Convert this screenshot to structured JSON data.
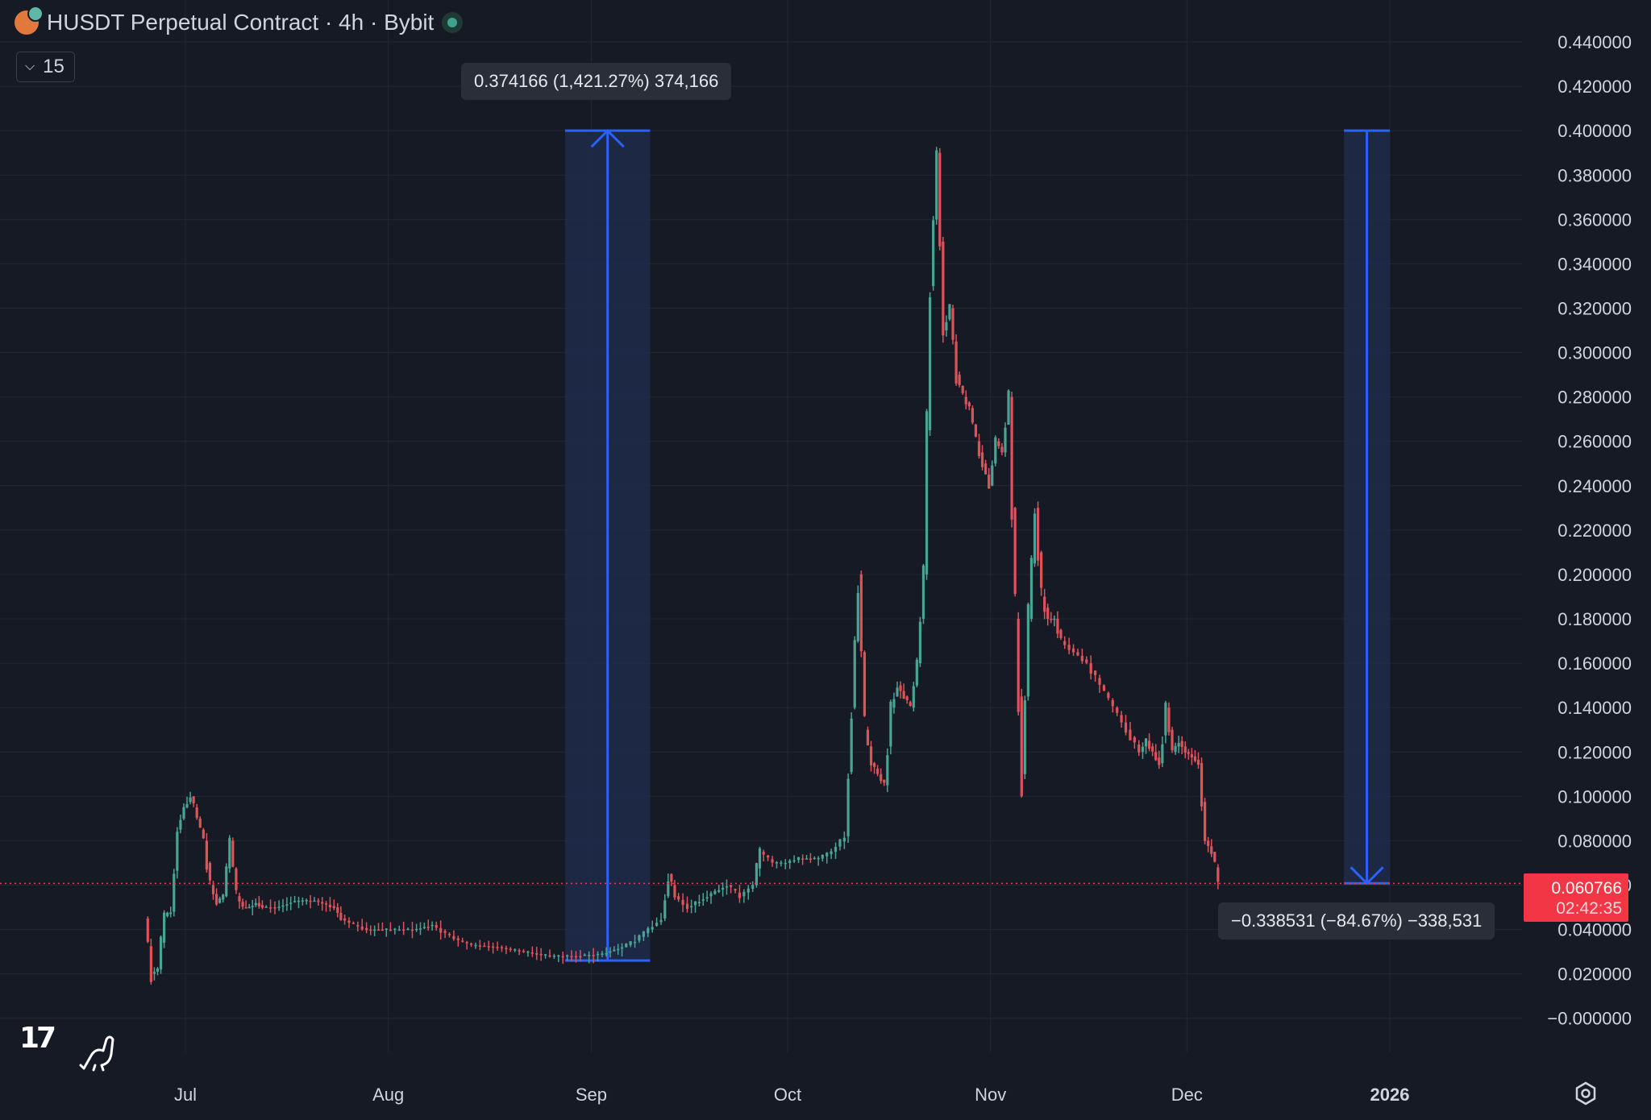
{
  "header": {
    "title": "HUSDT Perpetual Contract · 4h · Bybit",
    "indicator_count": "15"
  },
  "colors": {
    "background": "#161a25",
    "grid": "#232734",
    "up": "#4aa393",
    "down": "#e0525a",
    "measure_line": "#2962ff",
    "measure_fill": "#1e2b4b",
    "price_line": "#f23645",
    "axis_text": "#d1d4dc"
  },
  "measure_up": {
    "label": "0.374166 (1,421.27%) 374,166",
    "from": 0.026,
    "to": 0.4,
    "start_date": "2025-08-28",
    "end_date": "2025-09-10"
  },
  "measure_down": {
    "label": "−0.338531 (−84.67%) −338,531",
    "from": 0.4,
    "to": 0.0608,
    "start_date": "2025-12-25",
    "end_date": "2026-01-01"
  },
  "current_price": {
    "value": "0.060766",
    "countdown": "02:42:35"
  },
  "chart_data": {
    "type": "line",
    "title": "HUSDT Perpetual Contract · 4h · Bybit",
    "xlabel": "",
    "ylabel": "",
    "ylim": [
      -0.003,
      0.448
    ],
    "grid": true,
    "x_tick_labels": [
      "Jul",
      "Aug",
      "Sep",
      "Oct",
      "Nov",
      "Dec",
      "2026"
    ],
    "x_tick_dates": [
      "2025-07-01",
      "2025-08-01",
      "2025-09-01",
      "2025-10-01",
      "2025-11-01",
      "2025-12-01",
      "2026-01-01"
    ],
    "y_tick_labels": [
      "0.440000",
      "0.420000",
      "0.400000",
      "0.380000",
      "0.360000",
      "0.340000",
      "0.320000",
      "0.300000",
      "0.280000",
      "0.260000",
      "0.240000",
      "0.220000",
      "0.200000",
      "0.180000",
      "0.160000",
      "0.140000",
      "0.120000",
      "0.100000",
      "0.080000",
      "0.060000",
      "0.040000",
      "0.020000",
      "−0.000000"
    ],
    "series": [
      {
        "x": [
          "2025-06-25",
          "2025-06-26",
          "2025-06-27",
          "2025-06-28",
          "2025-06-29",
          "2025-06-30",
          "2025-07-01",
          "2025-07-02",
          "2025-07-03",
          "2025-07-04",
          "2025-07-05",
          "2025-07-06",
          "2025-07-07",
          "2025-07-08",
          "2025-07-09",
          "2025-07-10",
          "2025-07-11",
          "2025-07-12",
          "2025-07-13",
          "2025-07-15",
          "2025-07-18",
          "2025-07-21",
          "2025-07-24",
          "2025-07-25",
          "2025-07-27",
          "2025-07-29",
          "2025-08-01",
          "2025-08-05",
          "2025-08-08",
          "2025-08-10",
          "2025-08-12",
          "2025-08-14",
          "2025-08-18",
          "2025-08-22",
          "2025-08-26",
          "2025-08-30",
          "2025-09-03",
          "2025-09-06",
          "2025-09-08",
          "2025-09-10",
          "2025-09-12",
          "2025-09-13",
          "2025-09-14",
          "2025-09-16",
          "2025-09-19",
          "2025-09-22",
          "2025-09-24",
          "2025-09-26",
          "2025-09-27",
          "2025-09-29",
          "2025-10-01",
          "2025-10-03",
          "2025-10-06",
          "2025-10-08",
          "2025-10-10",
          "2025-10-11",
          "2025-10-12",
          "2025-10-13",
          "2025-10-14",
          "2025-10-15",
          "2025-10-16",
          "2025-10-17",
          "2025-10-18",
          "2025-10-19",
          "2025-10-20",
          "2025-10-21",
          "2025-10-22",
          "2025-10-23",
          "2025-10-24",
          "2025-10-25",
          "2025-10-26",
          "2025-10-27",
          "2025-10-28",
          "2025-10-29",
          "2025-10-30",
          "2025-10-31",
          "2025-11-01",
          "2025-11-02",
          "2025-11-03",
          "2025-11-04",
          "2025-11-05",
          "2025-11-06",
          "2025-11-07",
          "2025-11-08",
          "2025-11-09",
          "2025-11-10",
          "2025-11-11",
          "2025-11-12",
          "2025-11-14",
          "2025-11-16",
          "2025-11-18",
          "2025-11-20",
          "2025-11-22",
          "2025-11-24",
          "2025-11-25",
          "2025-11-26",
          "2025-11-27",
          "2025-11-28",
          "2025-11-29",
          "2025-11-30",
          "2025-12-01",
          "2025-12-02",
          "2025-12-03",
          "2025-12-04",
          "2025-12-05",
          "2025-12-06"
        ],
        "values": [
          0.045,
          0.02,
          0.022,
          0.046,
          0.048,
          0.085,
          0.095,
          0.1,
          0.09,
          0.08,
          0.06,
          0.052,
          0.055,
          0.08,
          0.055,
          0.05,
          0.05,
          0.052,
          0.05,
          0.05,
          0.053,
          0.053,
          0.05,
          0.045,
          0.042,
          0.04,
          0.04,
          0.04,
          0.042,
          0.038,
          0.035,
          0.033,
          0.032,
          0.03,
          0.028,
          0.028,
          0.029,
          0.032,
          0.035,
          0.04,
          0.045,
          0.065,
          0.055,
          0.05,
          0.055,
          0.06,
          0.055,
          0.06,
          0.075,
          0.07,
          0.07,
          0.072,
          0.072,
          0.075,
          0.082,
          0.14,
          0.2,
          0.13,
          0.115,
          0.11,
          0.105,
          0.14,
          0.15,
          0.145,
          0.14,
          0.16,
          0.2,
          0.33,
          0.39,
          0.31,
          0.32,
          0.29,
          0.28,
          0.275,
          0.26,
          0.25,
          0.24,
          0.26,
          0.255,
          0.28,
          0.18,
          0.11,
          0.18,
          0.23,
          0.19,
          0.18,
          0.18,
          0.17,
          0.165,
          0.16,
          0.15,
          0.14,
          0.13,
          0.12,
          0.125,
          0.12,
          0.115,
          0.14,
          0.12,
          0.125,
          0.12,
          0.118,
          0.115,
          0.08,
          0.075,
          0.061
        ]
      }
    ]
  }
}
